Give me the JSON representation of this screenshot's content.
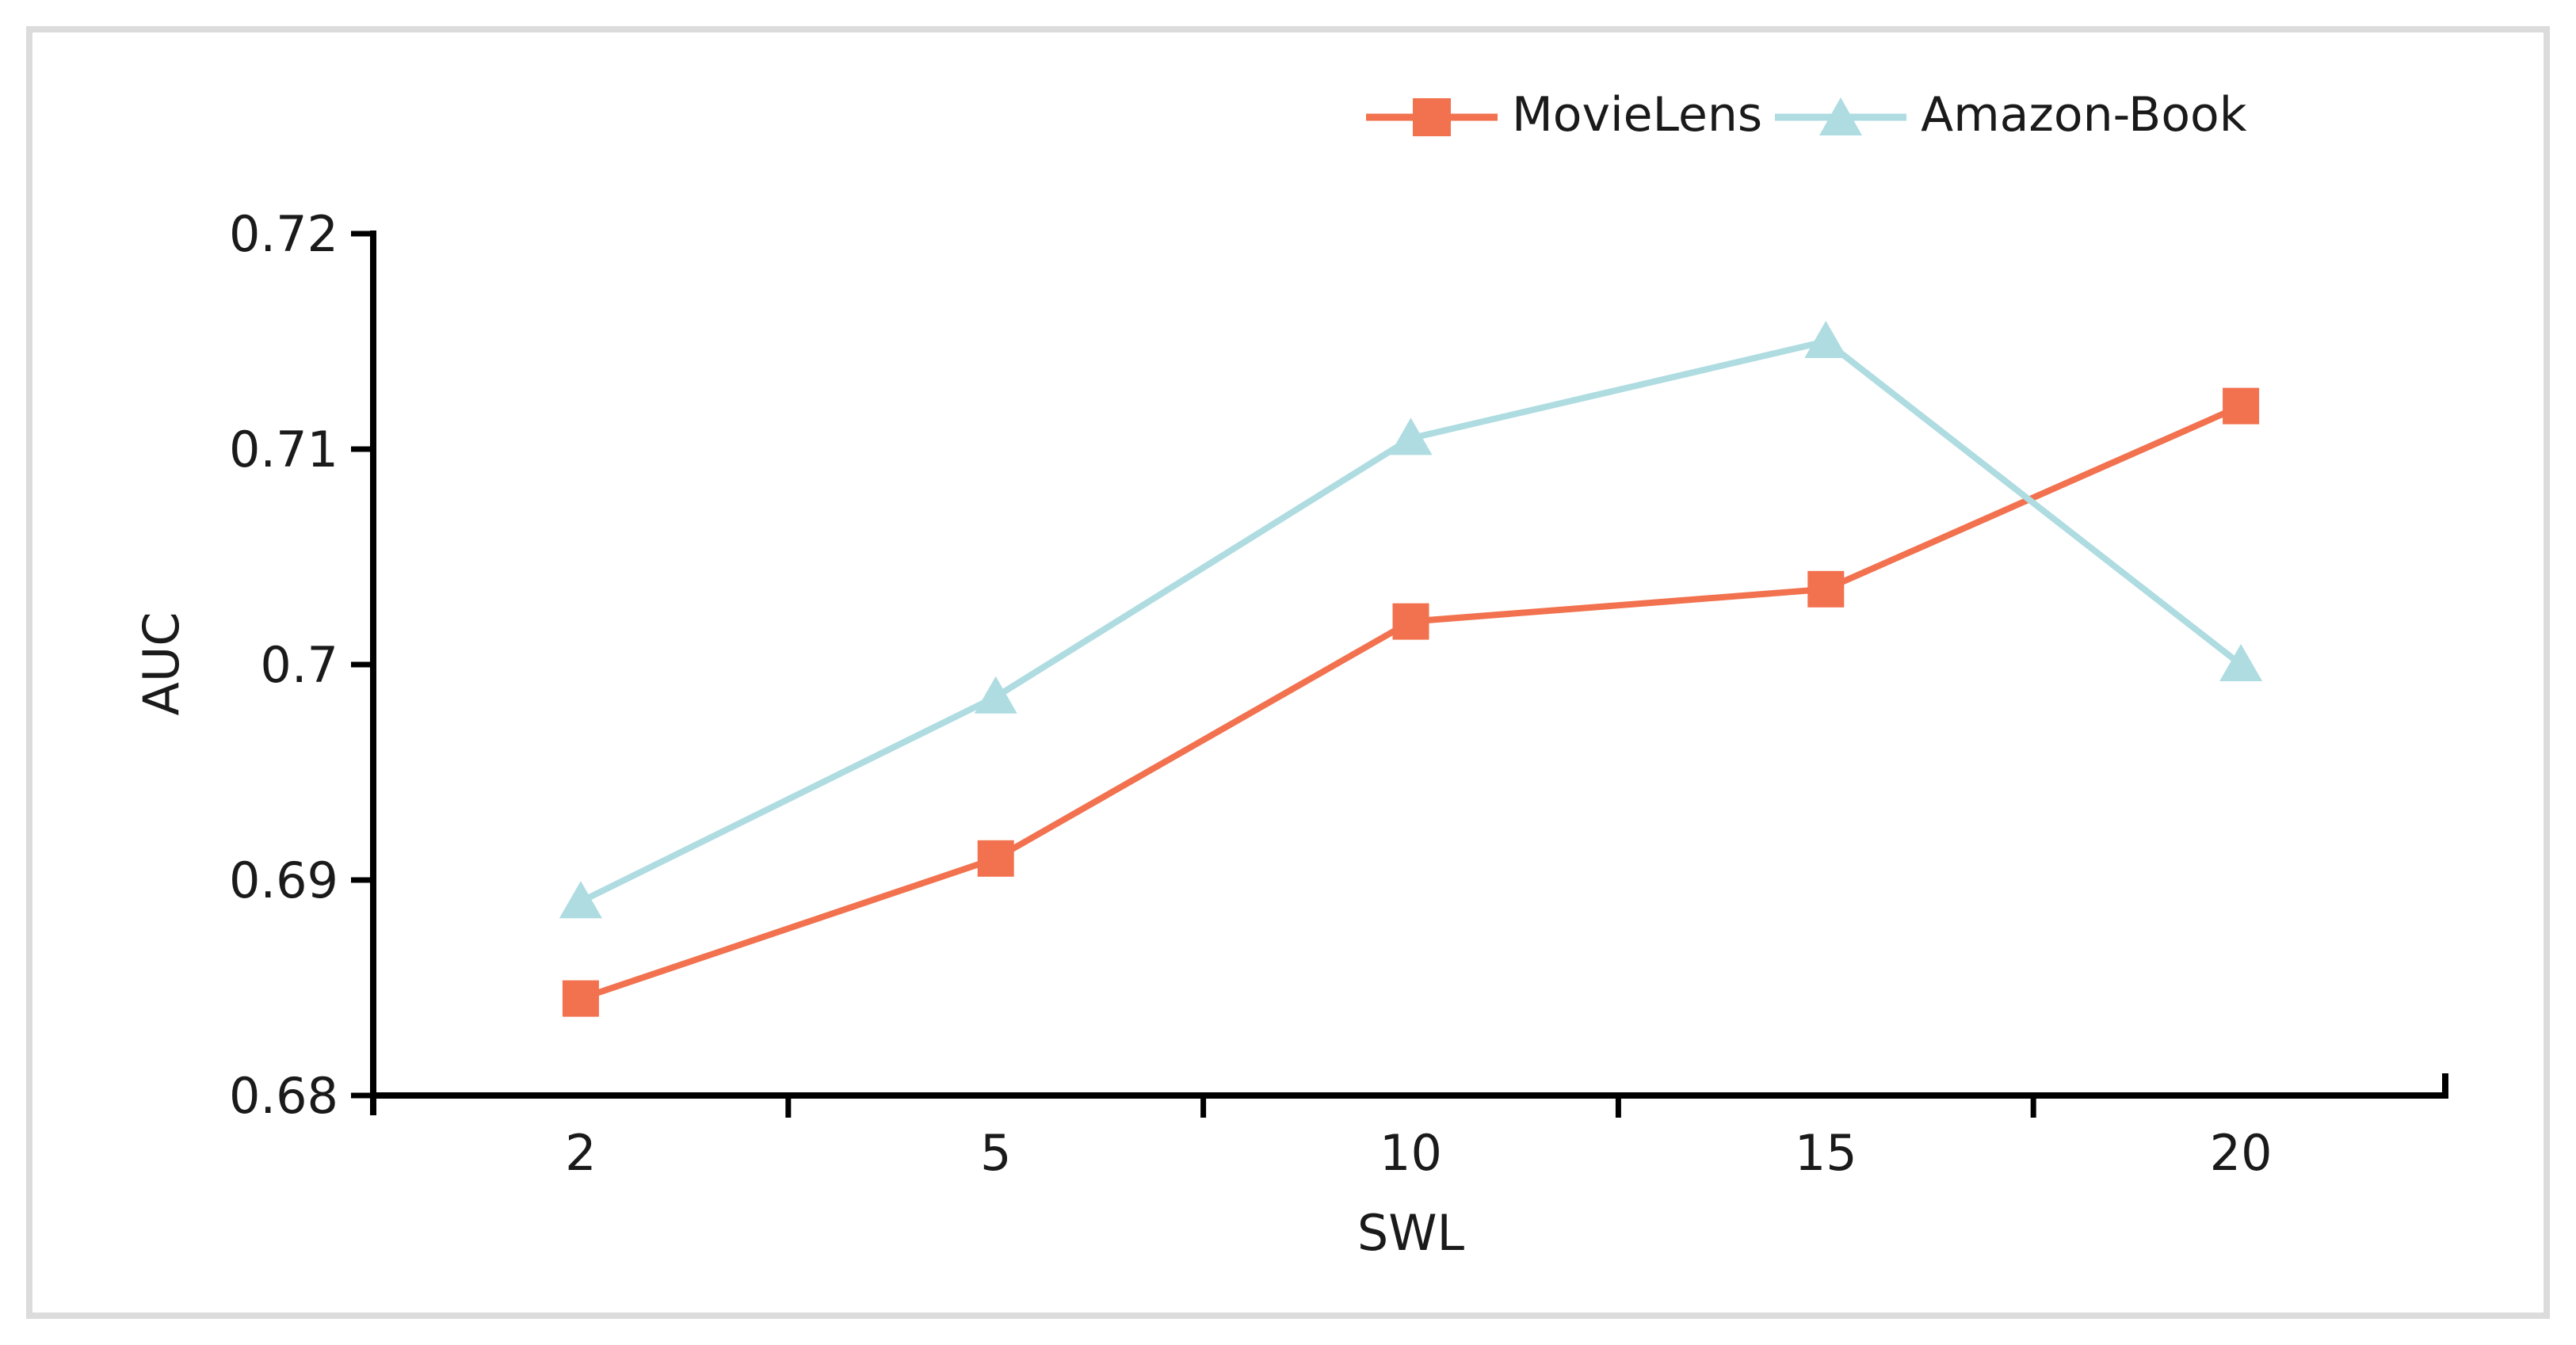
{
  "frame": {
    "background": "#ffffff",
    "border_color": "#dcdcdc"
  },
  "text_color": "#1a1a1a",
  "axis_color": "#000000",
  "chart_data": {
    "type": "line",
    "title": "",
    "xlabel": "SWL",
    "ylabel": "AUC",
    "categories": [
      2,
      5,
      10,
      15,
      20
    ],
    "x_tick_labels": [
      "2",
      "5",
      "10",
      "15",
      "20"
    ],
    "y_ticks": [
      0.68,
      0.69,
      0.7,
      0.71,
      0.72
    ],
    "y_tick_labels": [
      "0.68",
      "0.69",
      "0.7",
      "0.71",
      "0.72"
    ],
    "ylim": [
      0.68,
      0.72
    ],
    "grid": false,
    "legend_position": "top-right",
    "series": [
      {
        "name": "MovieLens",
        "marker": "square",
        "color": "#F2714E",
        "values": [
          0.6845,
          0.691,
          0.702,
          0.7035,
          0.712
        ]
      },
      {
        "name": "Amazon-Book",
        "marker": "triangle",
        "color": "#AEDCE1",
        "values": [
          0.689,
          0.6985,
          0.7105,
          0.715,
          0.7
        ]
      }
    ]
  }
}
